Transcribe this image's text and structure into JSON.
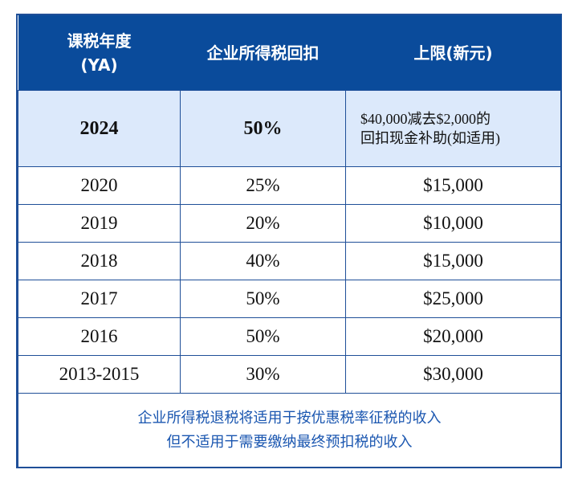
{
  "header": {
    "col_year_line1": "课税年度",
    "col_year_line2": "(YA)",
    "col_rebate": "企业所得税回扣",
    "col_cap": "上限(新元)"
  },
  "highlight_row": {
    "year": "2024",
    "rebate": "50%",
    "cap_line1": "$40,000减去$2,000的",
    "cap_line2": "回扣现金补助(如适用)"
  },
  "rows": [
    {
      "year": "2020",
      "rebate": "25%",
      "cap": "$15,000"
    },
    {
      "year": "2019",
      "rebate": "20%",
      "cap": "$10,000"
    },
    {
      "year": "2018",
      "rebate": "40%",
      "cap": "$15,000"
    },
    {
      "year": "2017",
      "rebate": "50%",
      "cap": "$25,000"
    },
    {
      "year": "2016",
      "rebate": "50%",
      "cap": "$20,000"
    },
    {
      "year": "2013-2015",
      "rebate": "30%",
      "cap": "$30,000"
    }
  ],
  "note": {
    "line1": "企业所得税退税将适用于按优惠税率征税的收入",
    "line2": "但不适用于需要缴纳最终预扣税的收入"
  },
  "colors": {
    "header_bg": "#0a4b9b",
    "highlight_bg": "#dce9fb",
    "border": "#1f4f98",
    "note_text": "#1a56b0"
  }
}
